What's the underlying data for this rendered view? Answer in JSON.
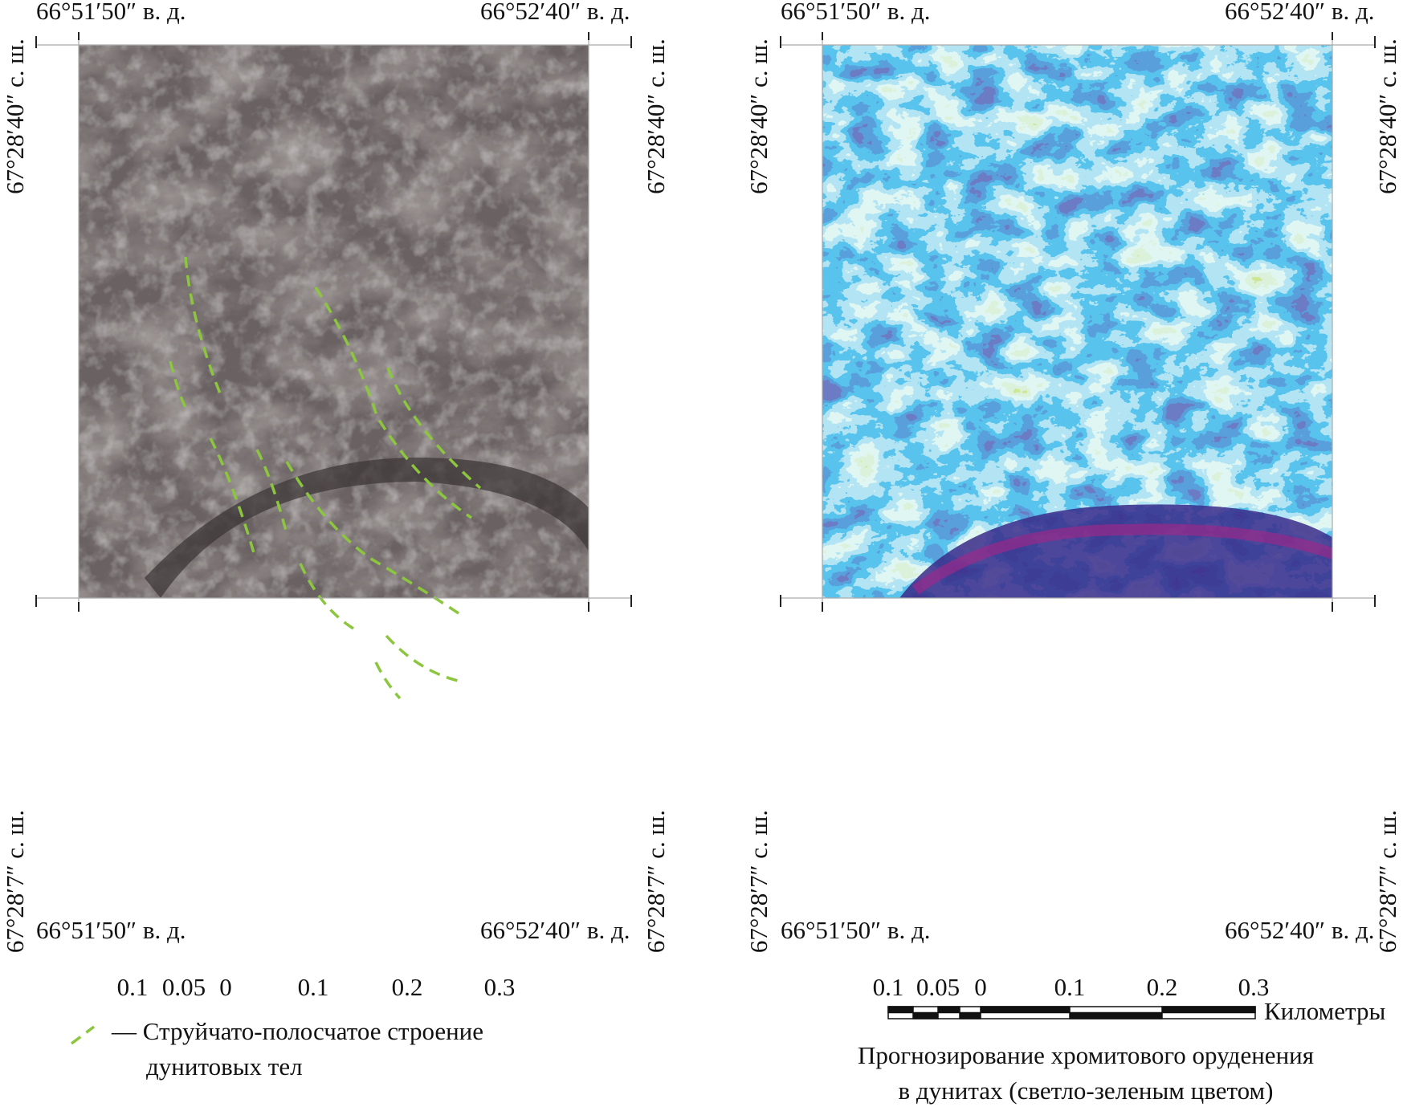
{
  "panels": [
    {
      "top_labels": [
        "66°51′50″ в. д.",
        "66°52′40″ в. д."
      ],
      "bottom_labels": [
        "66°51′50″ в. д.",
        "66°52′40″ в. д."
      ],
      "left_labels": [
        "67°28′40″ с. ш.",
        "67°28′7″ с. ш."
      ],
      "right_labels": [
        "67°28′40″ с. ш.",
        "67°28′7″ с. ш."
      ],
      "scale_ticks": [
        "0.1",
        "0.05",
        "0",
        "0.1",
        "0.2",
        "0.3"
      ]
    },
    {
      "top_labels": [
        "66°51′50″ в. д.",
        "66°52′40″ в. д."
      ],
      "bottom_labels": [
        "66°51′50″ в. д.",
        "66°52′40″ в. д."
      ],
      "left_labels": [
        "67°28′40″ с. ш.",
        "67°28′7″ с. ш."
      ],
      "right_labels": [
        "67°28′40″ с. ш.",
        "67°28′7″ с. ш."
      ],
      "scale_ticks": [
        "0.1",
        "0.05",
        "0",
        "0.1",
        "0.2",
        "0.3"
      ],
      "scale_unit": "Километры"
    }
  ],
  "legend": {
    "line1": "— Струйчато-полосчатое строение",
    "line2": "дунитовых тел"
  },
  "caption": {
    "line1": "Прогнозирование хромитового оруденения",
    "line2": "в дунитах (светло-зеленым цветом)"
  }
}
